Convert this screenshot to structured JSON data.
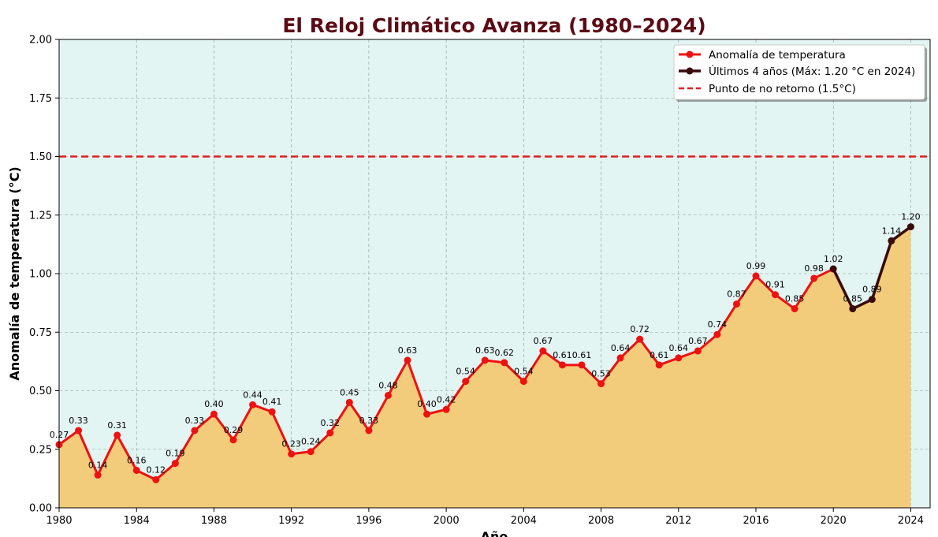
{
  "chart_data": {
    "type": "line",
    "title": "El Reloj Climático Avanza (1980–2024)",
    "xlabel": "Año",
    "ylabel": "Anomalía de temperatura (°C)",
    "xlim": [
      1980,
      2025
    ],
    "ylim": [
      0,
      2
    ],
    "x_ticks": [
      "1980",
      "1984",
      "1988",
      "1992",
      "1996",
      "2000",
      "2004",
      "2008",
      "2012",
      "2016",
      "2020",
      "2024"
    ],
    "y_ticks": [
      "0.00",
      "0.25",
      "0.50",
      "0.75",
      "1.00",
      "1.25",
      "1.50",
      "1.75",
      "2.00"
    ],
    "grid": true,
    "legend_position": "top-right",
    "x": [
      1980,
      1981,
      1982,
      1983,
      1984,
      1985,
      1986,
      1987,
      1988,
      1989,
      1990,
      1991,
      1992,
      1993,
      1994,
      1995,
      1996,
      1997,
      1998,
      1999,
      2000,
      2001,
      2002,
      2003,
      2004,
      2005,
      2006,
      2007,
      2008,
      2009,
      2010,
      2011,
      2012,
      2013,
      2014,
      2015,
      2016,
      2017,
      2018,
      2019,
      2020,
      2021,
      2022,
      2023,
      2024
    ],
    "values": [
      0.27,
      0.33,
      0.14,
      0.31,
      0.16,
      0.12,
      0.19,
      0.33,
      0.4,
      0.29,
      0.44,
      0.41,
      0.23,
      0.24,
      0.32,
      0.45,
      0.33,
      0.48,
      0.63,
      0.4,
      0.42,
      0.54,
      0.63,
      0.62,
      0.54,
      0.67,
      0.61,
      0.61,
      0.53,
      0.64,
      0.72,
      0.61,
      0.64,
      0.67,
      0.74,
      0.87,
      0.99,
      0.91,
      0.85,
      0.98,
      1.02,
      0.85,
      0.89,
      1.14,
      1.2
    ],
    "labels": [
      "0.27",
      "0.33",
      "0.14",
      "0.31",
      "0.16",
      "0.12",
      "0.19",
      "0.33",
      "0.40",
      "0.29",
      "0.44",
      "0.41",
      "0.23",
      "0.24",
      "0.32",
      "0.45",
      "0.33",
      "0.48",
      "0.63",
      "0.40",
      "0.42",
      "0.54",
      "0.63",
      "0.62",
      "0.54",
      "0.67",
      "0.61",
      "0.61",
      "0.53",
      "0.64",
      "0.72",
      "0.61",
      "0.64",
      "0.67",
      "0.74",
      "0.87",
      "0.99",
      "0.91",
      "0.85",
      "0.98",
      "1.02",
      "0.85",
      "0.89",
      "1.14",
      "1.20"
    ],
    "series": [
      {
        "name": "Anomalía de temperatura",
        "color": "#ee1111",
        "from": 1980,
        "to": 2020
      },
      {
        "name": "Últimos 4 años (Máx: 1.20 °C en 2024)",
        "color": "#3a0a0a",
        "from": 2020,
        "to": 2024
      }
    ],
    "threshold": {
      "name": "Punto de no retorno (1.5°C)",
      "value": 1.5,
      "color": "#e02020"
    },
    "colors": {
      "title": "#5c0a14",
      "plot_background": "#e2f5f3",
      "area_fill": "#f2cc7a",
      "grid": "#8a9a96"
    }
  }
}
